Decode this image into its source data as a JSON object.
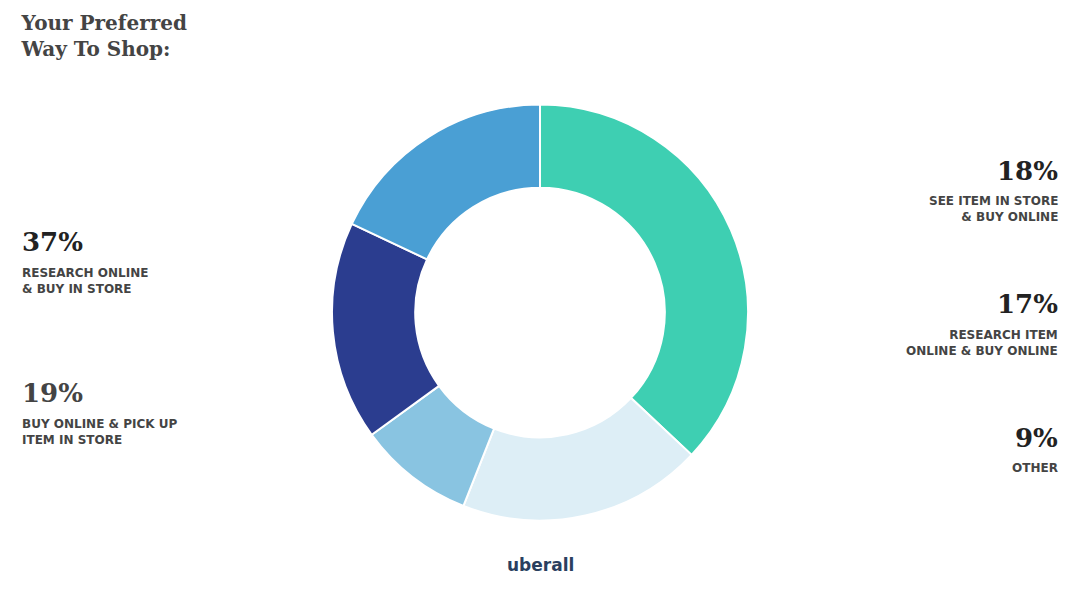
{
  "chart_data": {
    "type": "pie",
    "title": "Your Preferred\nWay To Shop:",
    "categories": [
      "RESEARCH ONLINE\n& BUY IN STORE",
      "BUY ONLINE & PICK UP\nITEM IN STORE",
      "OTHER",
      "RESEARCH ITEM\nONLINE & BUY ONLINE",
      "SEE ITEM IN STORE\n& BUY ONLINE"
    ],
    "values": [
      37,
      19,
      9,
      17,
      18
    ],
    "value_labels": [
      "37%",
      "19%",
      "9%",
      "17%",
      "18%"
    ],
    "colors": [
      "#3ecfb2",
      "#ddeef6",
      "#89c4e1",
      "#2b3d8f",
      "#4a9fd4"
    ],
    "data_labels": true,
    "annotations": [
      "uberall"
    ]
  }
}
